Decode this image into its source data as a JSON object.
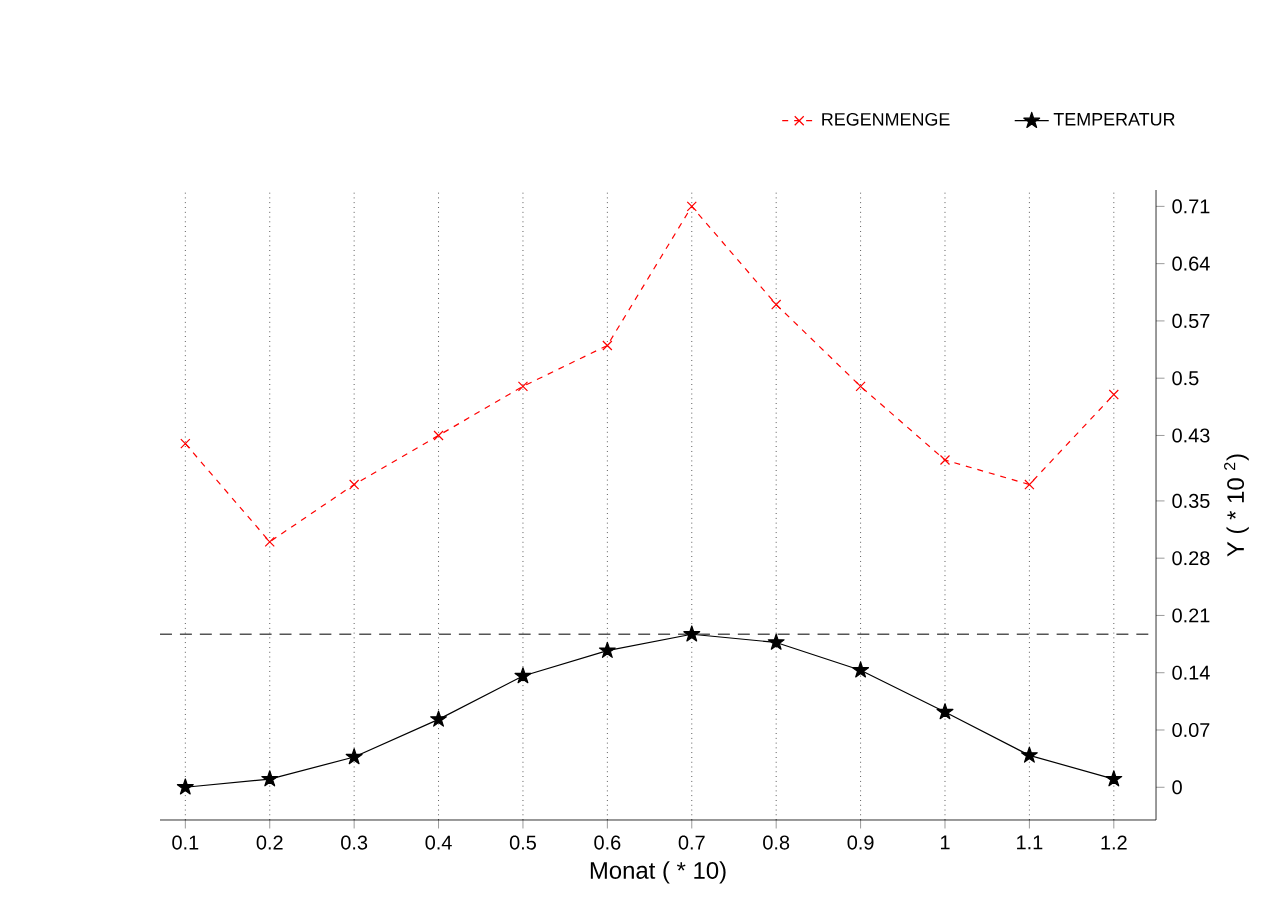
{
  "chart_data": {
    "type": "line",
    "xlabel": "Monat ( * 10)",
    "ylabel": "Y ( * 10 $^{2}$)",
    "x": [
      0.1,
      0.2,
      0.3,
      0.4,
      0.5,
      0.6,
      0.7,
      0.8,
      0.9,
      1,
      1.1,
      1.2
    ],
    "xlim": [
      0.07,
      1.25
    ],
    "ylim": [
      -0.04,
      0.73
    ],
    "xticks": [
      0.1,
      0.2,
      0.3,
      0.4,
      0.5,
      0.6,
      0.7,
      0.8,
      0.9,
      1,
      1.1,
      1.2
    ],
    "yticks": [
      0,
      0.07,
      0.14,
      0.21,
      0.28,
      0.35,
      0.43,
      0.5,
      0.57,
      0.64,
      0.71
    ],
    "grid": "x",
    "legend": "top",
    "series": [
      {
        "name": "REGENMENGE",
        "color": "#ff0000",
        "marker": "cross",
        "line_style": "dashed",
        "values": [
          0.42,
          0.3,
          0.37,
          0.43,
          0.49,
          0.54,
          0.71,
          0.59,
          0.49,
          0.4,
          0.37,
          0.48
        ]
      },
      {
        "name": "TEMPERATUR",
        "color": "#000000",
        "marker": "star",
        "line_style": "solid",
        "values": [
          0,
          0.01,
          0.037,
          0.083,
          0.136,
          0.167,
          0.187,
          0.177,
          0.143,
          0.092,
          0.039,
          0.01
        ]
      }
    ],
    "ref_lines": [
      {
        "axis": "y",
        "value": 0.187,
        "color": "#555555",
        "line_style": "dashed"
      }
    ]
  }
}
